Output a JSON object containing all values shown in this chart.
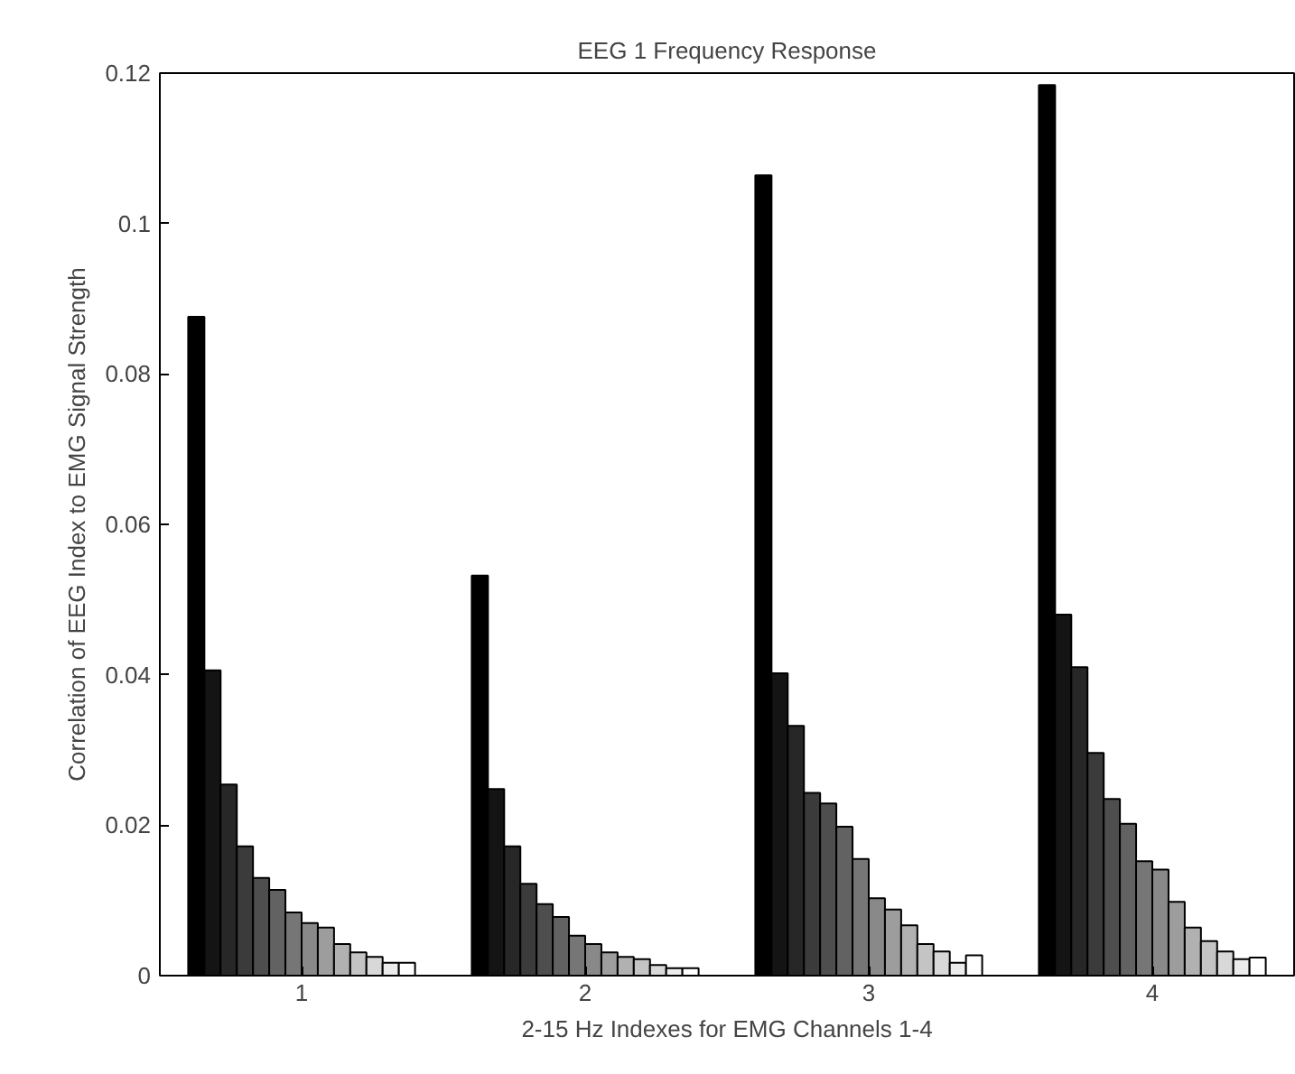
{
  "chart_data": {
    "type": "bar",
    "title": "EEG 1 Frequency Response",
    "xlabel": "2-15 Hz Indexes for EMG Channels 1-4",
    "ylabel": "Correlation of EEG Index to EMG Signal Strength",
    "categories": [
      "1",
      "2",
      "3",
      "4"
    ],
    "series": [
      {
        "color": "#000000",
        "values": [
          0.0876,
          0.0532,
          0.1064,
          0.1184
        ]
      },
      {
        "color": "#141414",
        "values": [
          0.0406,
          0.0248,
          0.0402,
          0.048
        ]
      },
      {
        "color": "#272727",
        "values": [
          0.0254,
          0.0172,
          0.0332,
          0.041
        ]
      },
      {
        "color": "#3b3b3b",
        "values": [
          0.0172,
          0.0122,
          0.0243,
          0.0296
        ]
      },
      {
        "color": "#4e4e4e",
        "values": [
          0.013,
          0.0095,
          0.0229,
          0.0235
        ]
      },
      {
        "color": "#626262",
        "values": [
          0.0114,
          0.0078,
          0.0198,
          0.0202
        ]
      },
      {
        "color": "#767676",
        "values": [
          0.0084,
          0.0053,
          0.0155,
          0.0152
        ]
      },
      {
        "color": "#898989",
        "values": [
          0.007,
          0.0042,
          0.0103,
          0.0141
        ]
      },
      {
        "color": "#9d9d9d",
        "values": [
          0.0064,
          0.0031,
          0.0088,
          0.0098
        ]
      },
      {
        "color": "#b1b1b1",
        "values": [
          0.0042,
          0.0025,
          0.0067,
          0.0064
        ]
      },
      {
        "color": "#c4c4c4",
        "values": [
          0.0031,
          0.0022,
          0.0042,
          0.0046
        ]
      },
      {
        "color": "#d8d8d8",
        "values": [
          0.0025,
          0.0014,
          0.0032,
          0.0032
        ]
      },
      {
        "color": "#ebebeb",
        "values": [
          0.0017,
          0.001,
          0.0017,
          0.0022
        ]
      },
      {
        "color": "#ffffff",
        "values": [
          0.0017,
          0.001,
          0.0027,
          0.0024
        ]
      }
    ],
    "ylim": [
      0,
      0.12
    ],
    "yticks": [
      0,
      0.02,
      0.04,
      0.06,
      0.08,
      0.1,
      0.12
    ],
    "grid": false
  }
}
